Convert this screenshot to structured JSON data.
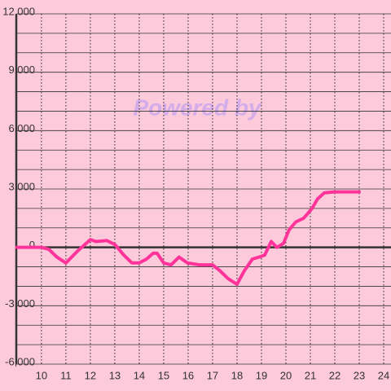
{
  "chart_data": {
    "type": "line",
    "watermark": "Powered by",
    "x": [
      9,
      10,
      10.3,
      10.63,
      11,
      11.47,
      12,
      12.23,
      12.67,
      13,
      13.37,
      13.7,
      14,
      14.3,
      14.57,
      14.73,
      15,
      15.3,
      15.63,
      15.97,
      16.47,
      17,
      17.3,
      17.63,
      18,
      18.3,
      18.63,
      18.9,
      19.13,
      19.4,
      19.63,
      19.9,
      20.13,
      20.4,
      20.73,
      21.07,
      21.3,
      21.57,
      21.97,
      23
    ],
    "series": [
      {
        "color": "#ff3399",
        "values": [
          0,
          0,
          -100,
          -500,
          -800,
          -200,
          400,
          300,
          350,
          150,
          -400,
          -800,
          -800,
          -600,
          -300,
          -300,
          -800,
          -900,
          -500,
          -800,
          -900,
          -900,
          -1200,
          -1600,
          -1900,
          -1200,
          -600,
          -500,
          -400,
          300,
          0,
          200,
          900,
          1300,
          1500,
          2000,
          2500,
          2800,
          2850,
          2850
        ]
      }
    ],
    "xlim": [
      8.97,
      24.3
    ],
    "xticks": [
      10,
      11,
      12,
      13,
      14,
      15,
      16,
      17,
      18,
      19,
      20,
      21,
      22,
      23,
      24
    ],
    "ylim": [
      -6000,
      12000
    ],
    "yticks": [
      {
        "value": -6000,
        "label": "-6,000"
      },
      {
        "value": -3000,
        "label": "-3,000"
      },
      0,
      {
        "value": 3000,
        "label": "3,000"
      },
      {
        "value": 6000,
        "label": "6,000"
      },
      {
        "value": 9000,
        "label": "9,000"
      },
      {
        "value": 12000,
        "label": "12,000"
      }
    ],
    "ygrid": [
      -6000,
      -5000,
      -4000,
      -3000,
      -2000,
      -1000,
      0,
      1000,
      2000,
      3000,
      4000,
      5000,
      6000,
      7000,
      8000,
      9000,
      10000,
      11000,
      12000
    ],
    "grid": true
  }
}
